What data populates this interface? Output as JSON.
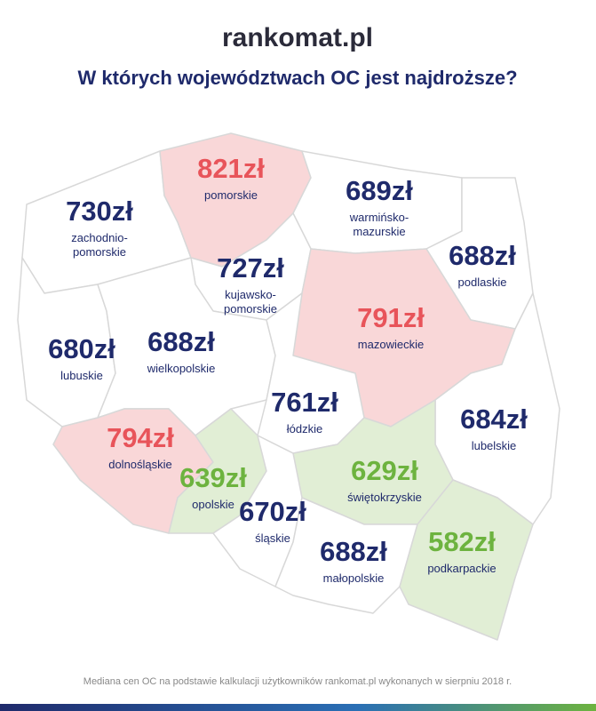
{
  "header": {
    "logo": "rankomat.pl",
    "title": "W których województwach OC jest najdroższe?"
  },
  "regions": [
    {
      "price": "730zł",
      "name": "zachodnio-\npomorskie",
      "color": "#1f2a6b"
    },
    {
      "price": "821zł",
      "name": "pomorskie",
      "color": "#e8545a"
    },
    {
      "price": "689zł",
      "name": "warmińsko-\nmazurskie",
      "color": "#1f2a6b"
    },
    {
      "price": "688zł",
      "name": "podlaskie",
      "color": "#1f2a6b"
    },
    {
      "price": "727zł",
      "name": "kujawsko-\npomorskie",
      "color": "#1f2a6b"
    },
    {
      "price": "791zł",
      "name": "mazowieckie",
      "color": "#e8545a"
    },
    {
      "price": "680zł",
      "name": "lubuskie",
      "color": "#1f2a6b"
    },
    {
      "price": "688zł",
      "name": "wielkopolskie",
      "color": "#1f2a6b"
    },
    {
      "price": "761zł",
      "name": "łódzkie",
      "color": "#1f2a6b"
    },
    {
      "price": "684zł",
      "name": "lubelskie",
      "color": "#1f2a6b"
    },
    {
      "price": "794zł",
      "name": "dolnośląskie",
      "color": "#e8545a"
    },
    {
      "price": "639zł",
      "name": "opolskie",
      "color": "#6db33f"
    },
    {
      "price": "629zł",
      "name": "świętokrzyskie",
      "color": "#6db33f"
    },
    {
      "price": "670zł",
      "name": "śląskie",
      "color": "#1f2a6b"
    },
    {
      "price": "688zł",
      "name": "małopolskie",
      "color": "#1f2a6b"
    },
    {
      "price": "582zł",
      "name": "podkarpackie",
      "color": "#6db33f"
    }
  ],
  "footer": "Mediana cen OC na podstawie kalkulacji użytkowników rankomat.pl wykonanych w sierpniu 2018 r."
}
